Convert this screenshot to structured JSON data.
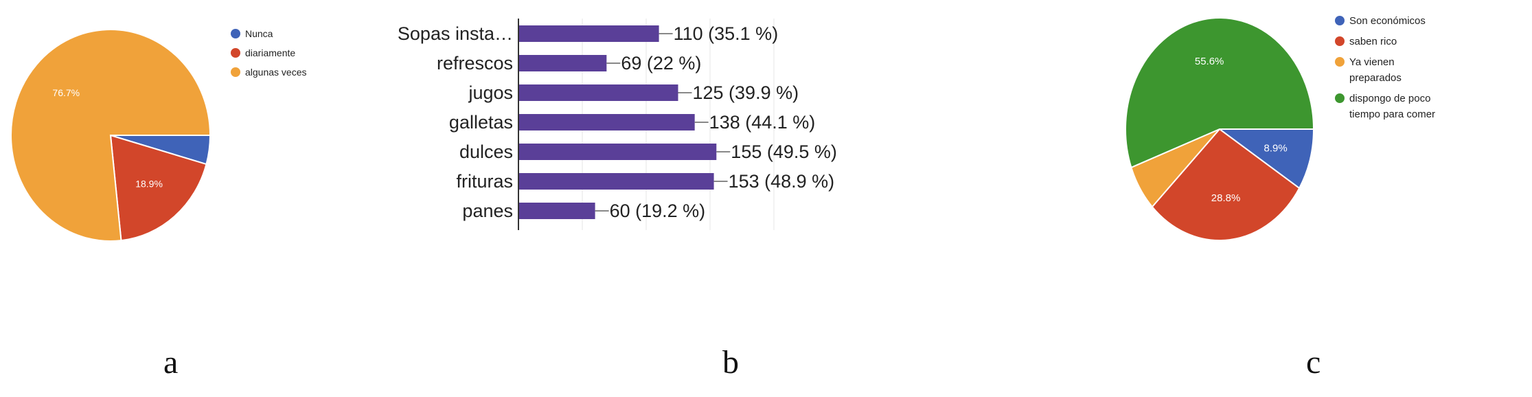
{
  "chart_data": [
    {
      "type": "pie",
      "panel_label": "a",
      "slices": [
        {
          "label": "Nunca",
          "value": 4.4,
          "color": "#3f63b8"
        },
        {
          "label": "diariamente",
          "value": 18.9,
          "color": "#d2462a",
          "data_label": "18.9%"
        },
        {
          "label": "algunas veces",
          "value": 76.7,
          "color": "#f0a23a",
          "data_label": "76.7%"
        }
      ],
      "legend_placement": "right"
    },
    {
      "type": "bar",
      "orientation": "horizontal",
      "panel_label": "b",
      "categories": [
        "Sopas insta…",
        "refrescos",
        "jugos",
        "galletas",
        "dulces",
        "frituras",
        "panes"
      ],
      "values": [
        110,
        69,
        125,
        138,
        155,
        153,
        60
      ],
      "data_labels": [
        "110 (35.1 %)",
        "69 (22 %)",
        "125 (39.9 %)",
        "138 (44.1 %)",
        "155 (49.5 %)",
        "153 (48.9 %)",
        "60 (19.2 %)"
      ],
      "color": "#5a3f98",
      "xlim": [
        0,
        200
      ],
      "grid": true
    },
    {
      "type": "pie",
      "panel_label": "c",
      "slices": [
        {
          "label": "Son económicos",
          "value": 8.9,
          "color": "#3f63b8",
          "data_label": "8.9%"
        },
        {
          "label": "saben rico",
          "value": 28.8,
          "color": "#d2462a",
          "data_label": "28.8%"
        },
        {
          "label": "Ya vienen preparados",
          "value": 6.7,
          "color": "#f0a23a"
        },
        {
          "label": "dispongo de poco tiempo para comer",
          "value": 55.6,
          "color": "#3d962f",
          "data_label": "55.6%"
        }
      ],
      "legend_placement": "right"
    }
  ]
}
